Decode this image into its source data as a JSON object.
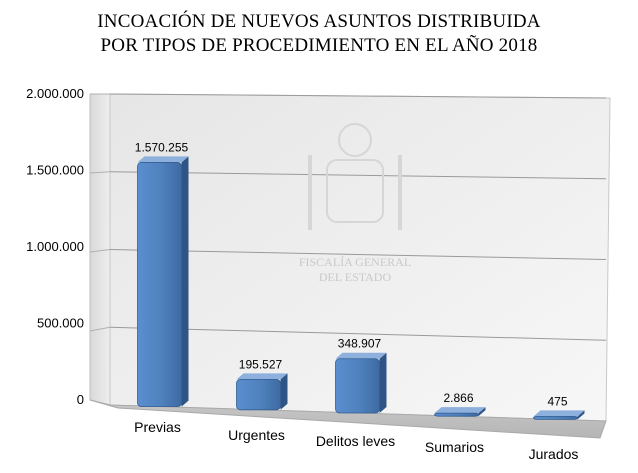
{
  "chart_data": {
    "type": "bar",
    "title_lines": [
      "INCOACIÓN DE NUEVOS ASUNTOS DISTRIBUIDA",
      "POR TIPOS DE PROCEDIMIENTO EN EL AÑO 2018"
    ],
    "categories": [
      "Previas",
      "Urgentes",
      "Delitos leves",
      "Sumarios",
      "Jurados"
    ],
    "values": [
      1570255,
      195527,
      348907,
      2866,
      475
    ],
    "value_labels": [
      "1.570.255",
      "195.527",
      "348.907",
      "2.866",
      "475"
    ],
    "ylim": [
      0,
      2000000
    ],
    "yticks": [
      0,
      500000,
      1000000,
      1500000,
      2000000
    ],
    "ytick_labels": [
      "0",
      "500.000",
      "1.000.000",
      "1.500.000",
      "2.000.000"
    ],
    "grid": true,
    "legend": "none",
    "style": "3d-column",
    "bar_color": "#4f81bd",
    "watermark": [
      "FISCALÍA GENERAL",
      "DEL ESTADO"
    ]
  }
}
